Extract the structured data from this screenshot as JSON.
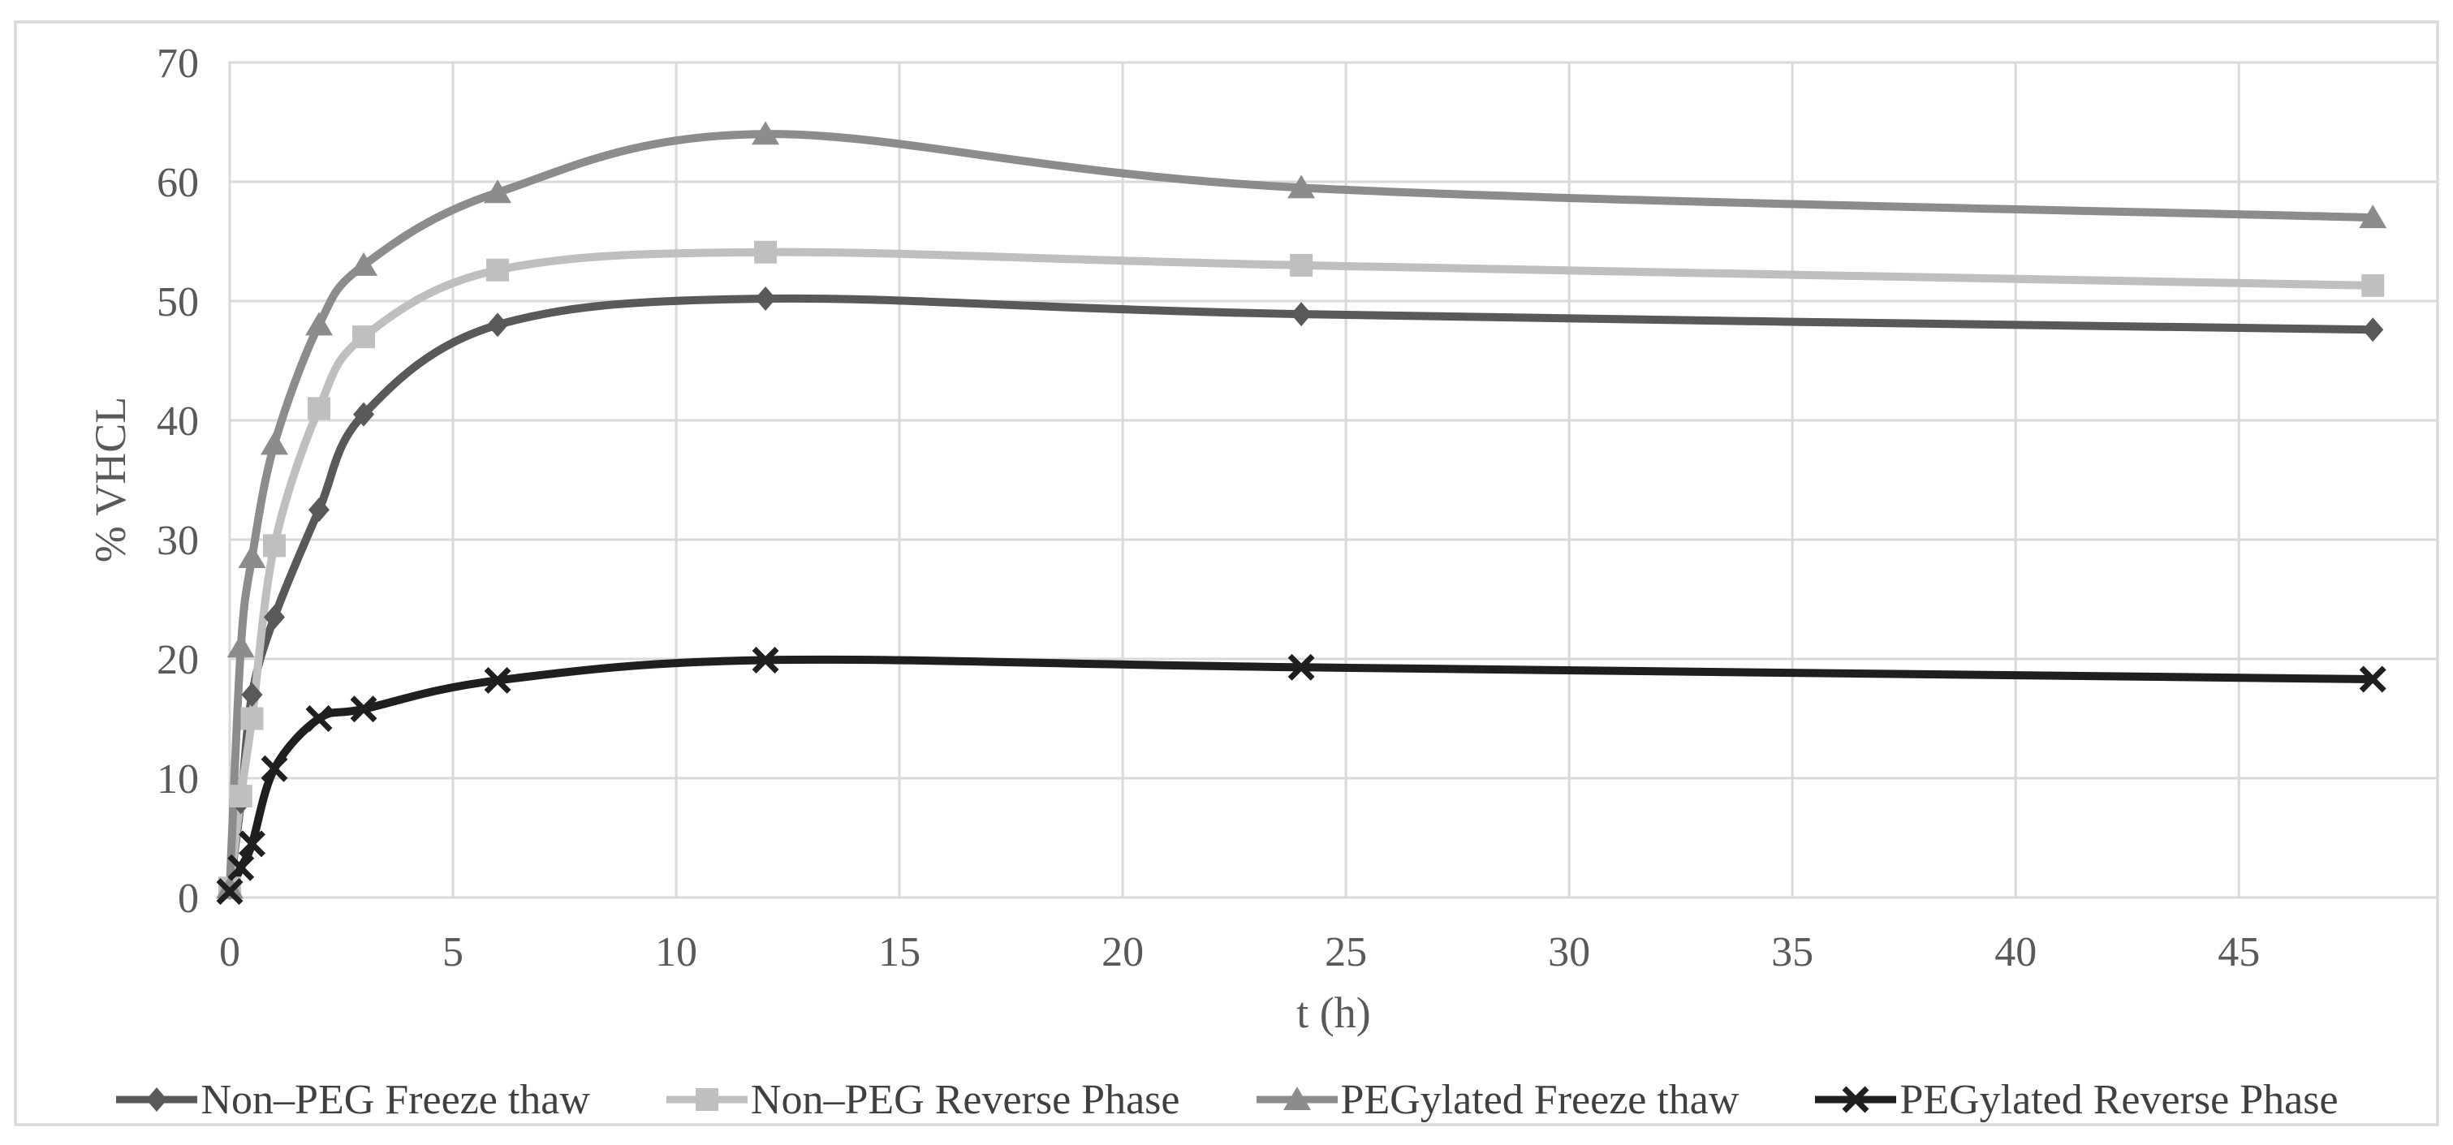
{
  "figure": {
    "background": "#ffffff",
    "border_color": "#d9d9d9",
    "gridline_color": "#d9d9d9",
    "text_color": "#595959"
  },
  "chart_data": {
    "type": "line",
    "title": "",
    "xlabel": "t (h)",
    "ylabel": "% VHCL",
    "xlim": [
      0,
      49.45
    ],
    "ylim": [
      0,
      70
    ],
    "x_ticks": [
      0,
      5,
      10,
      15,
      20,
      25,
      30,
      35,
      40,
      45
    ],
    "y_ticks": [
      0,
      10,
      20,
      30,
      40,
      50,
      60,
      70
    ],
    "grid": true,
    "legend_position": "bottom",
    "line_smoothing": true,
    "x": [
      0,
      0.25,
      0.5,
      1,
      2,
      3,
      6,
      12,
      24,
      48
    ],
    "series": [
      {
        "name": "Non–PEG Freeze thaw",
        "marker": "diamond",
        "color": "#595959",
        "values": [
          0.8,
          8,
          17,
          23.5,
          32.5,
          40.5,
          48,
          50.2,
          48.9,
          47.6
        ]
      },
      {
        "name": "Non–PEG Reverse Phase",
        "marker": "square",
        "color": "#bfbfbf",
        "values": [
          0.8,
          8.5,
          15,
          29.5,
          41,
          47,
          52.6,
          54.1,
          53,
          51.3
        ]
      },
      {
        "name": "PEGylated Freeze thaw",
        "marker": "triangle",
        "color": "#8c8c8c",
        "values": [
          0.8,
          21,
          28.5,
          38,
          48,
          53,
          59.1,
          64,
          59.5,
          57
        ]
      },
      {
        "name": "PEGylated Reverse Phase",
        "marker": "x",
        "color": "#1f1f1f",
        "values": [
          0.5,
          2.5,
          4.5,
          10.8,
          15,
          15.8,
          18.2,
          19.9,
          19.3,
          18.3
        ]
      }
    ]
  }
}
